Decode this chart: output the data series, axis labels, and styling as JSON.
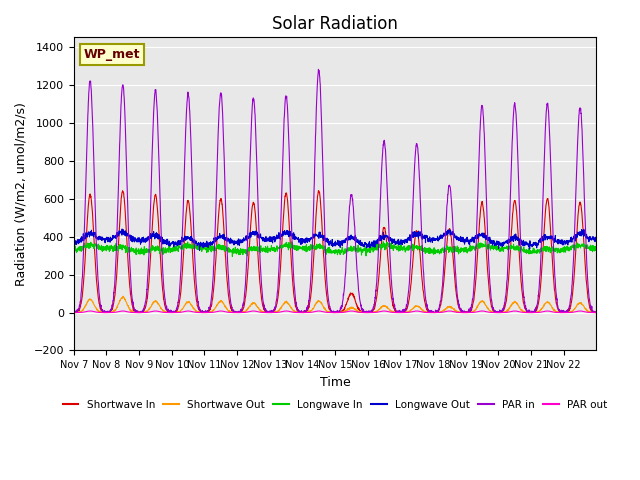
{
  "title": "Solar Radiation",
  "ylabel": "Radiation (W/m2, umol/m2/s)",
  "xlabel": "Time",
  "ylim": [
    -200,
    1450
  ],
  "yticks": [
    -200,
    0,
    200,
    400,
    600,
    800,
    1000,
    1200,
    1400
  ],
  "xtick_labels": [
    "Nov 7",
    "Nov 8",
    "Nov 9",
    "Nov 10",
    "Nov 11",
    "Nov 12",
    "Nov 13",
    "Nov 14",
    "Nov 15",
    "Nov 16",
    "Nov 17",
    "Nov 18",
    "Nov 19",
    "Nov 20",
    "Nov 21",
    "Nov 22"
  ],
  "bg_color": "#e8e8e8",
  "annotation_label": "WP_met",
  "annotation_bg": "#ffffcc",
  "annotation_border": "#999900",
  "series_colors": {
    "shortwave_in": "#dd0000",
    "shortwave_out": "#ff9900",
    "longwave_in": "#00cc00",
    "longwave_out": "#0000cc",
    "par_in": "#9900cc",
    "par_out": "#ff00cc"
  },
  "legend_labels": [
    "Shortwave In",
    "Shortwave Out",
    "Longwave In",
    "Longwave Out",
    "PAR in",
    "PAR out"
  ],
  "num_days": 16,
  "points_per_day": 144,
  "shortwave_peaks": [
    620,
    640,
    620,
    590,
    600,
    580,
    630,
    640,
    100,
    450,
    430,
    440,
    580,
    590,
    600,
    580
  ],
  "par_in_peaks": [
    1220,
    1200,
    1170,
    1150,
    1160,
    1130,
    1140,
    1280,
    620,
    900,
    890,
    670,
    1090,
    1100,
    1100,
    1080
  ],
  "shortwave_out_peaks": [
    70,
    80,
    60,
    55,
    60,
    50,
    55,
    60,
    25,
    35,
    35,
    30,
    60,
    55,
    55,
    50
  ],
  "longwave_in_baseline": 330,
  "longwave_out_baseline": 370
}
